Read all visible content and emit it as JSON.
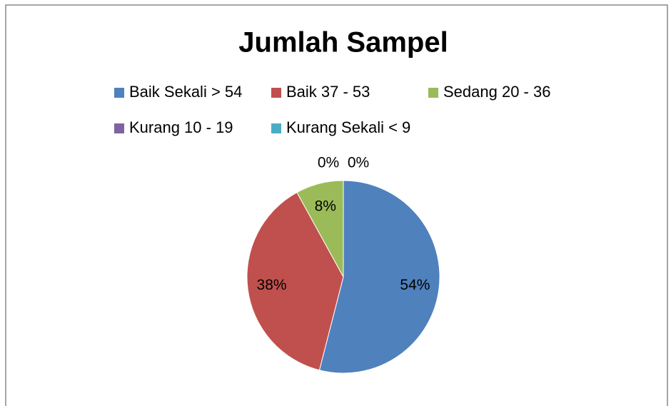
{
  "chart_data": {
    "type": "pie",
    "title": "Jumlah Sampel",
    "categories": [
      "Baik Sekali > 54",
      "Baik 37 - 53",
      "Sedang 20 - 36",
      "Kurang 10 - 19",
      "Kurang Sekali < 9"
    ],
    "values": [
      54,
      38,
      8,
      0,
      0
    ],
    "value_labels": [
      "54%",
      "38%",
      "8%",
      "0%",
      "0%"
    ],
    "colors": [
      "#4f81bd",
      "#c0504d",
      "#9bbb59",
      "#8064a2",
      "#4bacc6"
    ],
    "legend": "top"
  }
}
